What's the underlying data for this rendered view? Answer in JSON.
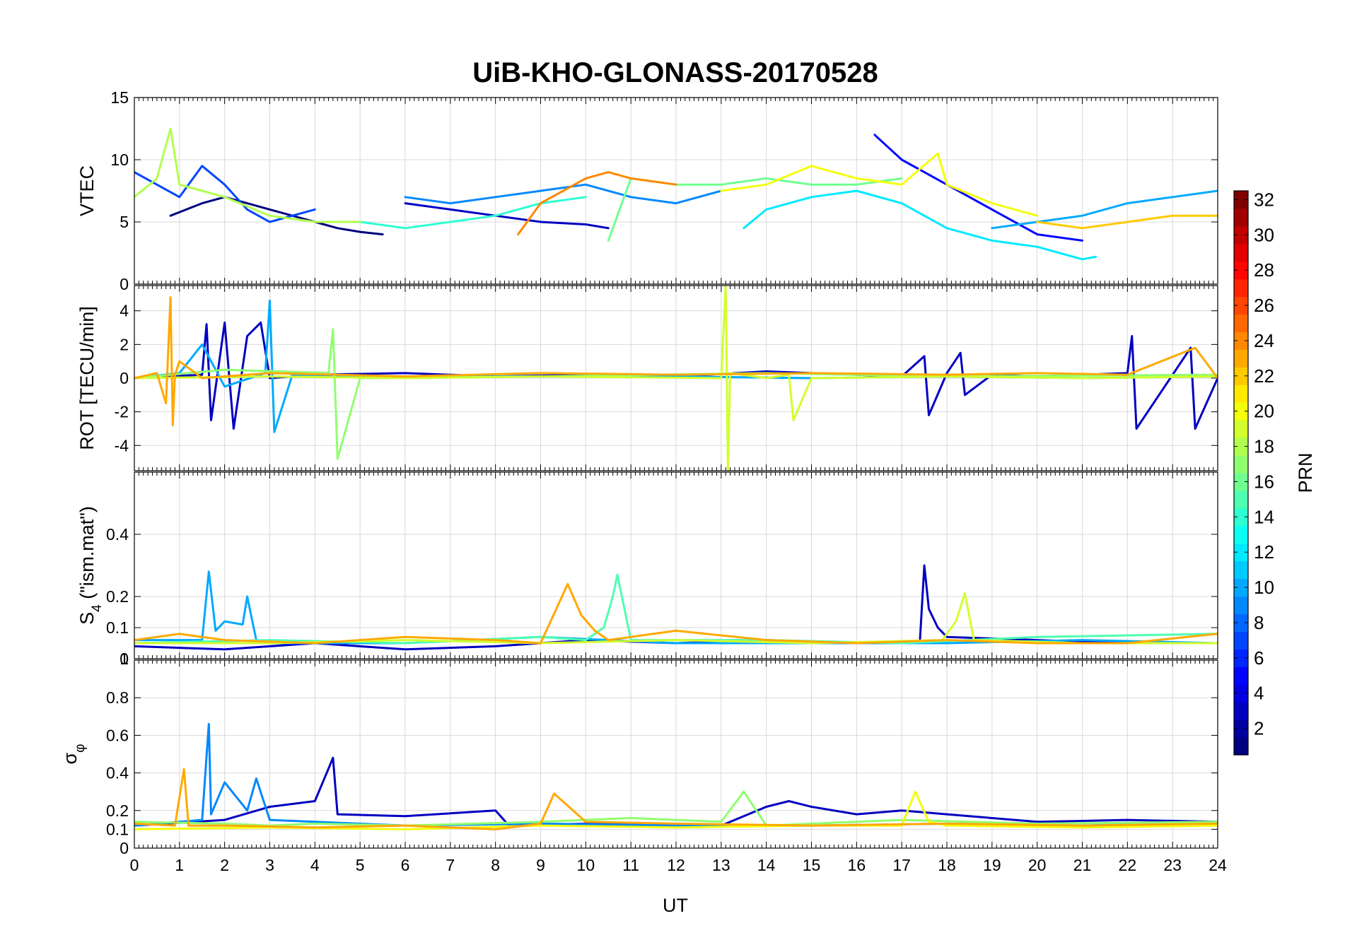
{
  "chart_data": {
    "type": "line",
    "title": "UiB-KHO-GLONASS-20170528",
    "xlabel": "UT",
    "xlim": [
      0,
      24
    ],
    "x_ticks": [
      "0",
      "1",
      "2",
      "3",
      "4",
      "5",
      "6",
      "7",
      "8",
      "9",
      "10",
      "11",
      "12",
      "13",
      "14",
      "15",
      "16",
      "17",
      "18",
      "19",
      "20",
      "21",
      "22",
      "23",
      "24"
    ],
    "colorbar": {
      "label": "PRN",
      "colormap": "jet",
      "range": [
        1,
        32
      ],
      "ticks": [
        "2",
        "4",
        "6",
        "8",
        "10",
        "12",
        "14",
        "16",
        "18",
        "20",
        "22",
        "24",
        "26",
        "28",
        "30",
        "32"
      ]
    },
    "panels": [
      {
        "id": "vtec",
        "ylabel": "VTEC",
        "ylim": [
          0,
          15
        ],
        "y_ticks": [
          {
            "v": 0,
            "t": "0"
          },
          {
            "v": 5,
            "t": "5"
          },
          {
            "v": 10,
            "t": "10"
          },
          {
            "v": 15,
            "t": "15"
          }
        ],
        "series": [
          {
            "prn": 1,
            "x": [
              0.8,
              1.5,
              2.0,
              2.5,
              3.0,
              3.5,
              4.0,
              4.5,
              5.0,
              5.5
            ],
            "y": [
              5.5,
              6.5,
              7.0,
              6.5,
              6.0,
              5.5,
              5.0,
              4.5,
              4.2,
              4.0
            ]
          },
          {
            "prn": 3,
            "x": [
              6.0,
              7.0,
              8.0,
              9.0,
              10.0,
              10.5
            ],
            "y": [
              6.5,
              6.0,
              5.5,
              5.0,
              4.8,
              4.5
            ]
          },
          {
            "prn": 5,
            "x": [
              16.4,
              17.0,
              17.5,
              18.0,
              18.5,
              19.0,
              20.0,
              21.0
            ],
            "y": [
              12.0,
              10.0,
              9.0,
              8.0,
              7.0,
              6.0,
              4.0,
              3.5
            ]
          },
          {
            "prn": 7,
            "x": [
              0.0,
              0.5,
              1.0,
              1.5,
              2.0,
              2.5,
              3.0,
              3.5,
              4.0
            ],
            "y": [
              9.0,
              8.0,
              7.0,
              9.5,
              8.0,
              6.0,
              5.0,
              5.5,
              6.0
            ]
          },
          {
            "prn": 9,
            "x": [
              6.0,
              7.0,
              8.0,
              9.0,
              10.0,
              11.0,
              12.0,
              13.0
            ],
            "y": [
              7.0,
              6.5,
              7.0,
              7.5,
              8.0,
              7.0,
              6.5,
              7.5
            ]
          },
          {
            "prn": 10,
            "x": [
              19.0,
              20.0,
              21.0,
              22.0,
              23.0,
              24.0
            ],
            "y": [
              4.5,
              5.0,
              5.5,
              6.5,
              7.0,
              7.5
            ]
          },
          {
            "prn": 12,
            "x": [
              13.5,
              14.0,
              15.0,
              16.0,
              17.0,
              18.0,
              19.0,
              20.0,
              21.0,
              21.3
            ],
            "y": [
              4.5,
              6.0,
              7.0,
              7.5,
              6.5,
              4.5,
              3.5,
              3.0,
              2.0,
              2.2
            ]
          },
          {
            "prn": 14,
            "x": [
              4.0,
              5.0,
              6.0,
              7.0,
              8.0,
              9.0,
              10.0
            ],
            "y": [
              5.0,
              5.0,
              4.5,
              5.0,
              5.5,
              6.5,
              7.0
            ]
          },
          {
            "prn": 16,
            "x": [
              10.5,
              11.0,
              12.0,
              13.0,
              14.0,
              15.0,
              16.0,
              17.0
            ],
            "y": [
              3.5,
              8.5,
              8.0,
              8.0,
              8.5,
              8.0,
              8.0,
              8.5
            ]
          },
          {
            "prn": 18,
            "x": [
              0.0,
              0.5,
              0.8,
              1.0,
              1.5,
              2.0,
              3.0,
              4.0,
              5.0
            ],
            "y": [
              7.0,
              8.5,
              12.5,
              8.0,
              7.5,
              7.0,
              5.5,
              5.0,
              5.0
            ]
          },
          {
            "prn": 20,
            "x": [
              13.0,
              14.0,
              15.0,
              16.0,
              17.0,
              17.8,
              18.0,
              19.0,
              20.0
            ],
            "y": [
              7.5,
              8.0,
              9.5,
              8.5,
              8.0,
              10.5,
              8.0,
              6.5,
              5.5
            ]
          },
          {
            "prn": 22,
            "x": [
              20.0,
              21.0,
              22.0,
              23.0,
              24.0
            ],
            "y": [
              5.0,
              4.5,
              5.0,
              5.5,
              5.5
            ]
          },
          {
            "prn": 24,
            "x": [
              8.5,
              9.0,
              9.5,
              10.0,
              10.5,
              11.0,
              12.0
            ],
            "y": [
              4.0,
              6.5,
              7.5,
              8.5,
              9.0,
              8.5,
              8.0
            ]
          }
        ]
      },
      {
        "id": "rot",
        "ylabel": "ROT [TECU/min]",
        "ylim": [
          -5.5,
          5.5
        ],
        "y_ticks": [
          {
            "v": -4,
            "t": "-4"
          },
          {
            "v": -2,
            "t": "-2"
          },
          {
            "v": 0,
            "t": "0"
          },
          {
            "v": 2,
            "t": "2"
          },
          {
            "v": 4,
            "t": "4"
          }
        ],
        "series": [
          {
            "prn": 3,
            "x": [
              0.0,
              1.5,
              1.6,
              1.7,
              2.0,
              2.2,
              2.5,
              2.8,
              3.0,
              4.0,
              6.0,
              8.0,
              10.0,
              12.0,
              14.0,
              15.0,
              16.0,
              17.0,
              17.5,
              17.6,
              18.0,
              18.3,
              18.4,
              19.0,
              20.0,
              21.0,
              22.0,
              22.1,
              22.2,
              23.0,
              23.4,
              23.5,
              24.0
            ],
            "y": [
              0,
              0.2,
              3.2,
              -2.5,
              3.3,
              -3.0,
              2.5,
              3.3,
              0,
              0.2,
              0.3,
              0.1,
              0.2,
              0.1,
              0.4,
              0.3,
              0.2,
              0.1,
              1.3,
              -2.2,
              0.3,
              1.5,
              -1.0,
              0.2,
              0.1,
              0.2,
              0.3,
              2.5,
              -3.0,
              0.2,
              1.8,
              -3.0,
              0
            ]
          },
          {
            "prn": 10,
            "x": [
              0.0,
              1.0,
              1.5,
              2.0,
              2.9,
              3.0,
              3.1,
              3.5,
              6.0,
              9.0,
              12.0,
              15.0,
              18.0,
              21.0,
              24.0
            ],
            "y": [
              0,
              0.3,
              2.0,
              -0.5,
              0.3,
              4.6,
              -3.2,
              0.2,
              0.1,
              0.1,
              0.1,
              0,
              0.1,
              0,
              0.1
            ]
          },
          {
            "prn": 17,
            "x": [
              0.0,
              2.0,
              4.3,
              4.4,
              4.5,
              5.0,
              9.0,
              14.0,
              18.0,
              24.0
            ],
            "y": [
              0,
              0.5,
              0.3,
              2.9,
              -4.8,
              0,
              0.1,
              0.3,
              0.1,
              0.2
            ]
          },
          {
            "prn": 19,
            "x": [
              0.0,
              3.0,
              6.0,
              9.0,
              13.0,
              13.1,
              13.15,
              13.2,
              14.0,
              14.5,
              14.6,
              15.0,
              18.0,
              21.0,
              24.0
            ],
            "y": [
              0,
              0.1,
              0,
              0.1,
              0,
              5.5,
              -5.5,
              0.3,
              0,
              0.2,
              -2.5,
              0,
              0.1,
              0,
              0.1
            ]
          },
          {
            "prn": 23,
            "x": [
              0.0,
              0.5,
              0.7,
              0.8,
              0.85,
              0.9,
              1.0,
              1.5,
              3.0,
              6.0,
              9.0,
              12.0,
              15.0,
              18.0,
              20.0,
              22.0,
              23.5,
              24.0
            ],
            "y": [
              0,
              0.3,
              -1.5,
              4.8,
              -2.8,
              0.2,
              1.0,
              0,
              0.3,
              0.1,
              0.3,
              0.2,
              0.3,
              0.2,
              0.3,
              0.2,
              1.8,
              0
            ]
          }
        ]
      },
      {
        "id": "s4",
        "ylabel": "S4 (\"ism.mat\")",
        "ylabel_main": "S",
        "ylabel_sub": "4",
        "ylabel_rest": " (\"ism.mat\")",
        "ylim": [
          0,
          0.6
        ],
        "y_ticks": [
          {
            "v": 0,
            "t": "0"
          },
          {
            "v": 0.1,
            "t": "0.1"
          },
          {
            "v": 0.2,
            "t": "0.2"
          },
          {
            "v": 0.4,
            "t": "0.4"
          }
        ],
        "top_overlap_tick": "1",
        "series": [
          {
            "prn": 3,
            "x": [
              0.0,
              2.0,
              4.0,
              6.0,
              8.0,
              10.0,
              12.0,
              14.0,
              16.0,
              17.4,
              17.5,
              17.6,
              17.8,
              18.0,
              20.0,
              22.0,
              24.0
            ],
            "y": [
              0.04,
              0.03,
              0.05,
              0.03,
              0.04,
              0.06,
              0.05,
              0.06,
              0.05,
              0.05,
              0.3,
              0.16,
              0.1,
              0.07,
              0.06,
              0.05,
              0.05
            ]
          },
          {
            "prn": 10,
            "x": [
              0.0,
              1.5,
              1.65,
              1.8,
              2.0,
              2.4,
              2.5,
              2.7,
              3.0,
              6.0,
              9.0,
              12.0,
              15.0,
              18.0,
              21.0,
              24.0
            ],
            "y": [
              0.06,
              0.06,
              0.28,
              0.09,
              0.12,
              0.11,
              0.2,
              0.06,
              0.05,
              0.05,
              0.07,
              0.05,
              0.05,
              0.05,
              0.06,
              0.05
            ]
          },
          {
            "prn": 15,
            "x": [
              0.0,
              3.0,
              6.0,
              9.0,
              10.0,
              10.4,
              10.6,
              10.7,
              11.0,
              14.0,
              17.0,
              20.0,
              24.0
            ],
            "y": [
              0.05,
              0.06,
              0.05,
              0.07,
              0.06,
              0.1,
              0.2,
              0.27,
              0.06,
              0.06,
              0.05,
              0.07,
              0.08
            ]
          },
          {
            "prn": 19,
            "x": [
              0.0,
              3.0,
              6.0,
              9.0,
              12.0,
              15.0,
              17.9,
              18.2,
              18.4,
              18.6,
              21.0,
              24.0
            ],
            "y": [
              0.05,
              0.05,
              0.06,
              0.05,
              0.06,
              0.05,
              0.06,
              0.12,
              0.21,
              0.06,
              0.05,
              0.05
            ]
          },
          {
            "prn": 23,
            "x": [
              0.0,
              1.0,
              2.0,
              4.0,
              6.0,
              8.0,
              9.0,
              9.6,
              9.9,
              10.2,
              10.5,
              12.0,
              14.0,
              16.0,
              18.0,
              20.0,
              22.0,
              24.0
            ],
            "y": [
              0.06,
              0.08,
              0.06,
              0.05,
              0.07,
              0.06,
              0.05,
              0.24,
              0.14,
              0.09,
              0.06,
              0.09,
              0.06,
              0.05,
              0.06,
              0.05,
              0.05,
              0.08
            ]
          }
        ]
      },
      {
        "id": "sigma",
        "ylabel": "σ_φ",
        "ylabel_main": "σ",
        "ylabel_sub": "φ",
        "ylim": [
          0,
          1
        ],
        "y_ticks": [
          {
            "v": 0,
            "t": "0"
          },
          {
            "v": 0.1,
            "t": "0.1"
          },
          {
            "v": 0.2,
            "t": "0.2"
          },
          {
            "v": 0.4,
            "t": "0.4"
          },
          {
            "v": 0.6,
            "t": "0.6"
          },
          {
            "v": 0.8,
            "t": "0.8"
          }
        ],
        "series": [
          {
            "prn": 3,
            "x": [
              0.0,
              2.0,
              3.0,
              4.0,
              4.4,
              4.5,
              6.0,
              8.0,
              8.3,
              10.0,
              13.0,
              14.0,
              14.5,
              15.0,
              16.0,
              17.0,
              18.0,
              20.0,
              22.0,
              24.0
            ],
            "y": [
              0.12,
              0.15,
              0.22,
              0.25,
              0.48,
              0.18,
              0.17,
              0.2,
              0.12,
              0.13,
              0.12,
              0.22,
              0.25,
              0.22,
              0.18,
              0.2,
              0.18,
              0.14,
              0.15,
              0.14
            ]
          },
          {
            "prn": 9,
            "x": [
              0.0,
              1.5,
              1.65,
              1.7,
              2.0,
              2.5,
              2.7,
              3.0,
              4.0,
              6.0,
              9.0,
              12.0,
              15.0,
              18.0,
              21.0,
              24.0
            ],
            "y": [
              0.12,
              0.15,
              0.66,
              0.18,
              0.35,
              0.2,
              0.37,
              0.15,
              0.14,
              0.12,
              0.13,
              0.12,
              0.12,
              0.13,
              0.12,
              0.14
            ]
          },
          {
            "prn": 17,
            "x": [
              0.0,
              2.0,
              3.0,
              4.0,
              6.0,
              9.0,
              11.0,
              12.0,
              13.0,
              13.5,
              14.0,
              17.0,
              20.0,
              24.0
            ],
            "y": [
              0.14,
              0.13,
              0.12,
              0.13,
              0.12,
              0.14,
              0.16,
              0.15,
              0.14,
              0.3,
              0.12,
              0.15,
              0.13,
              0.14
            ]
          },
          {
            "prn": 20,
            "x": [
              0.0,
              3.0,
              6.0,
              9.0,
              12.0,
              15.0,
              17.0,
              17.3,
              17.6,
              18.0,
              21.0,
              24.0
            ],
            "y": [
              0.1,
              0.11,
              0.1,
              0.12,
              0.11,
              0.12,
              0.12,
              0.3,
              0.14,
              0.12,
              0.11,
              0.12
            ]
          },
          {
            "prn": 23,
            "x": [
              0.0,
              0.9,
              1.1,
              1.2,
              2.0,
              4.0,
              6.0,
              8.0,
              9.0,
              9.3,
              10.0,
              12.0,
              15.0,
              18.0,
              21.0,
              24.0
            ],
            "y": [
              0.13,
              0.12,
              0.42,
              0.12,
              0.12,
              0.11,
              0.12,
              0.1,
              0.13,
              0.29,
              0.14,
              0.13,
              0.12,
              0.13,
              0.12,
              0.13
            ]
          }
        ]
      }
    ]
  }
}
